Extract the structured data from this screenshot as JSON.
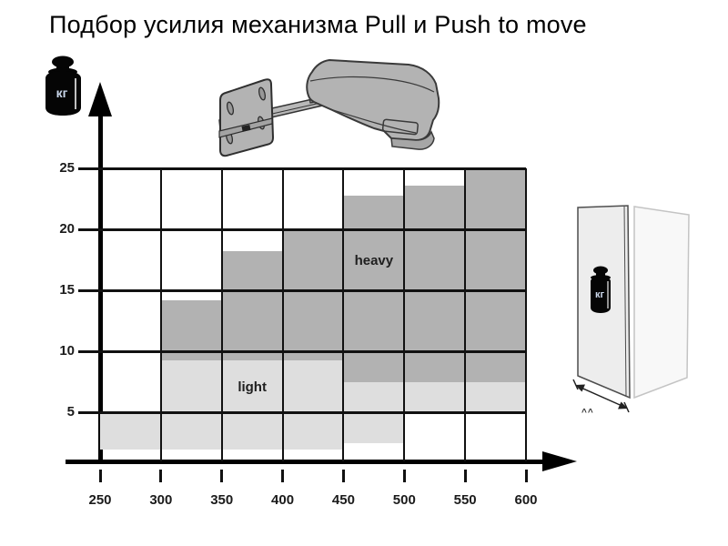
{
  "title": "Подбор усилия механизма Pull и Push to move",
  "axis": {
    "y_unit_icon_label": "кг",
    "x_tick_labels": [
      "250",
      "300",
      "350",
      "400",
      "450",
      "500",
      "550",
      "600"
    ],
    "y_tick_labels": [
      "5",
      "10",
      "15",
      "20",
      "25"
    ]
  },
  "chart_data": {
    "type": "area",
    "description": "Stepped selection zones (light / heavy) for Pull and Push to move mechanism force; y axis in kg, x axis 250–600",
    "x_range": [
      250,
      600
    ],
    "y_range": [
      1,
      25
    ],
    "x_ticks": [
      250,
      300,
      350,
      400,
      450,
      500,
      550,
      600
    ],
    "y_ticks": [
      5,
      10,
      15,
      20,
      25
    ],
    "grid": true,
    "series": [
      {
        "name": "light",
        "label": "light",
        "fill": "#dedede",
        "steps": [
          {
            "x0": 250,
            "x1": 300,
            "kg0": 2,
            "kg1": 5
          },
          {
            "x0": 300,
            "x1": 350,
            "kg0": 2,
            "kg1": 9.3
          },
          {
            "x0": 350,
            "x1": 400,
            "kg0": 2,
            "kg1": 9.3
          },
          {
            "x0": 400,
            "x1": 450,
            "kg0": 2,
            "kg1": 9.3
          },
          {
            "x0": 450,
            "x1": 500,
            "kg0": 2.5,
            "kg1": 7.5
          },
          {
            "x0": 500,
            "x1": 550,
            "kg0": 5,
            "kg1": 7.5
          },
          {
            "x0": 550,
            "x1": 600,
            "kg0": 5,
            "kg1": 7.5
          }
        ]
      },
      {
        "name": "heavy",
        "label": "heavy",
        "fill": "#b2b2b2",
        "steps": [
          {
            "x0": 300,
            "x1": 350,
            "kg0": 9.3,
            "kg1": 14.2
          },
          {
            "x0": 350,
            "x1": 400,
            "kg0": 9.3,
            "kg1": 18.2
          },
          {
            "x0": 400,
            "x1": 450,
            "kg0": 9.3,
            "kg1": 20
          },
          {
            "x0": 450,
            "x1": 500,
            "kg0": 7.5,
            "kg1": 22.8
          },
          {
            "x0": 500,
            "x1": 550,
            "kg0": 7.5,
            "kg1": 23.6
          },
          {
            "x0": 550,
            "x1": 600,
            "kg0": 7.5,
            "kg1": 25
          }
        ]
      }
    ],
    "region_labels": [
      {
        "text": "light",
        "x": 375,
        "kg": 7
      },
      {
        "text": "heavy",
        "x": 475,
        "kg": 17.3
      }
    ]
  },
  "cabinet": {
    "weight_label": "кг",
    "dim_marks": "^^"
  },
  "colors": {
    "heavy_fill": "#b2b2b2",
    "light_fill": "#dedede",
    "grid": "#111111",
    "axis": "#000000",
    "label_text": "#1b1b1b",
    "weight_icon": "#050505",
    "weight_icon_text": "#c9d6ea"
  }
}
